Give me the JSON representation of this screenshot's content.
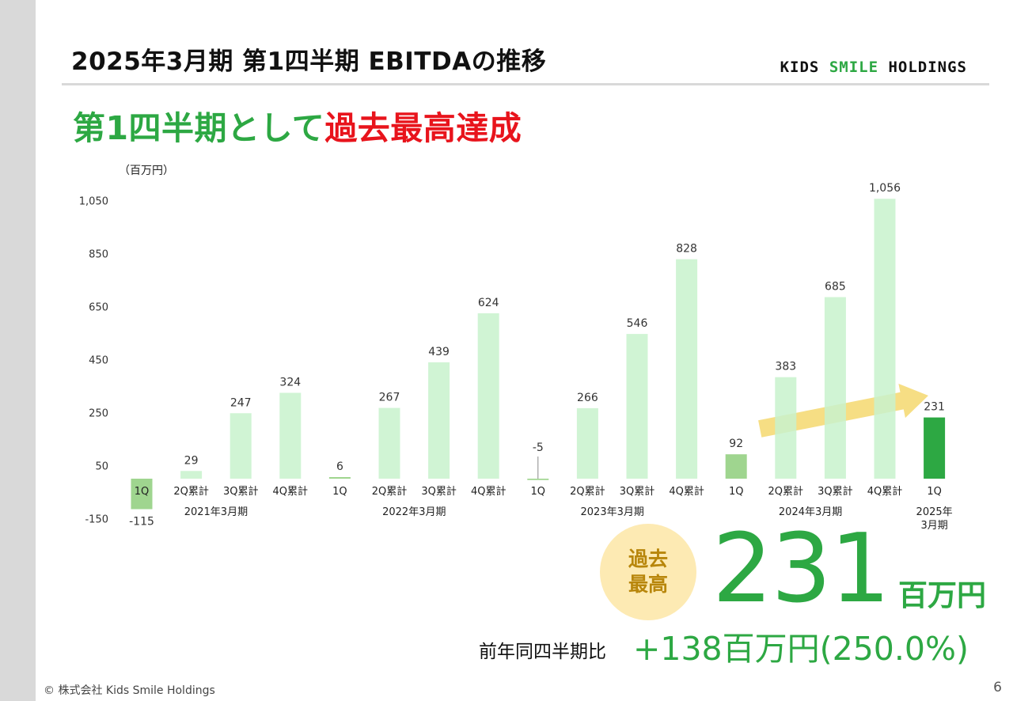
{
  "header": {
    "title": "2025年3月期 第1四半期 EBITDAの推移",
    "brand": {
      "part1": "KIDS",
      "part2": "SMILE",
      "part3": "HOLDINGS"
    }
  },
  "headline": {
    "green_text": "第1四半期として",
    "red_text": "過去最高達成"
  },
  "colors": {
    "accent_green": "#2da843",
    "highlight_red": "#e8141c",
    "bar_light": "#c8f2cc",
    "bar_q1": "#9fd58f",
    "bar_current": "#2da843",
    "badge_bg": "#fdeab3",
    "badge_text": "#b8860b",
    "trend_arrow": "#f5d86e"
  },
  "chart_data": {
    "type": "bar",
    "unit": "（百万円）",
    "ylim": [
      -150,
      1050
    ],
    "yticks": [
      -150,
      50,
      250,
      450,
      650,
      850,
      1050
    ],
    "ytick_labels": [
      "-150",
      "50",
      "250",
      "450",
      "650",
      "850",
      "1,050"
    ],
    "grid": false,
    "legend": "none",
    "categories": [
      "1Q",
      "2Q累計",
      "3Q累計",
      "4Q累計",
      "1Q",
      "2Q累計",
      "3Q累計",
      "4Q累計",
      "1Q",
      "2Q累計",
      "3Q累計",
      "4Q累計",
      "1Q",
      "2Q累計",
      "3Q累計",
      "4Q累計",
      "1Q"
    ],
    "values": [
      -115,
      29,
      247,
      324,
      6,
      267,
      439,
      624,
      -5,
      266,
      546,
      828,
      92,
      383,
      685,
      1056,
      231
    ],
    "value_labels": [
      "-115",
      "29",
      "247",
      "324",
      "6",
      "267",
      "439",
      "624",
      "-5",
      "266",
      "546",
      "828",
      "92",
      "383",
      "685",
      "1,056",
      "231"
    ],
    "bar_kinds": [
      "q1",
      "cum",
      "cum",
      "cum",
      "q1",
      "cum",
      "cum",
      "cum",
      "q1",
      "cum",
      "cum",
      "cum",
      "q1",
      "cum",
      "cum",
      "cum",
      "current"
    ],
    "groups": [
      {
        "label": "2021年3月期",
        "start": 0,
        "end": 3
      },
      {
        "label": "2022年3月期",
        "start": 4,
        "end": 7
      },
      {
        "label": "2023年3月期",
        "start": 8,
        "end": 11
      },
      {
        "label": "2024年3月期",
        "start": 12,
        "end": 15
      },
      {
        "label_lines": [
          "2025年",
          "3月期"
        ],
        "start": 16,
        "end": 16
      }
    ],
    "trend_arrow": {
      "from_category": 12,
      "to_category": 15,
      "color": "#f5d86e"
    }
  },
  "highlight": {
    "badge_line1": "過去",
    "badge_line2": "最高",
    "value": "231",
    "unit": "百万円",
    "yoy_label": "前年同四半期比",
    "yoy_value": "+138百万円(250.0%)"
  },
  "footer": {
    "copyright": "© 株式会社 Kids Smile Holdings",
    "page": "6"
  }
}
